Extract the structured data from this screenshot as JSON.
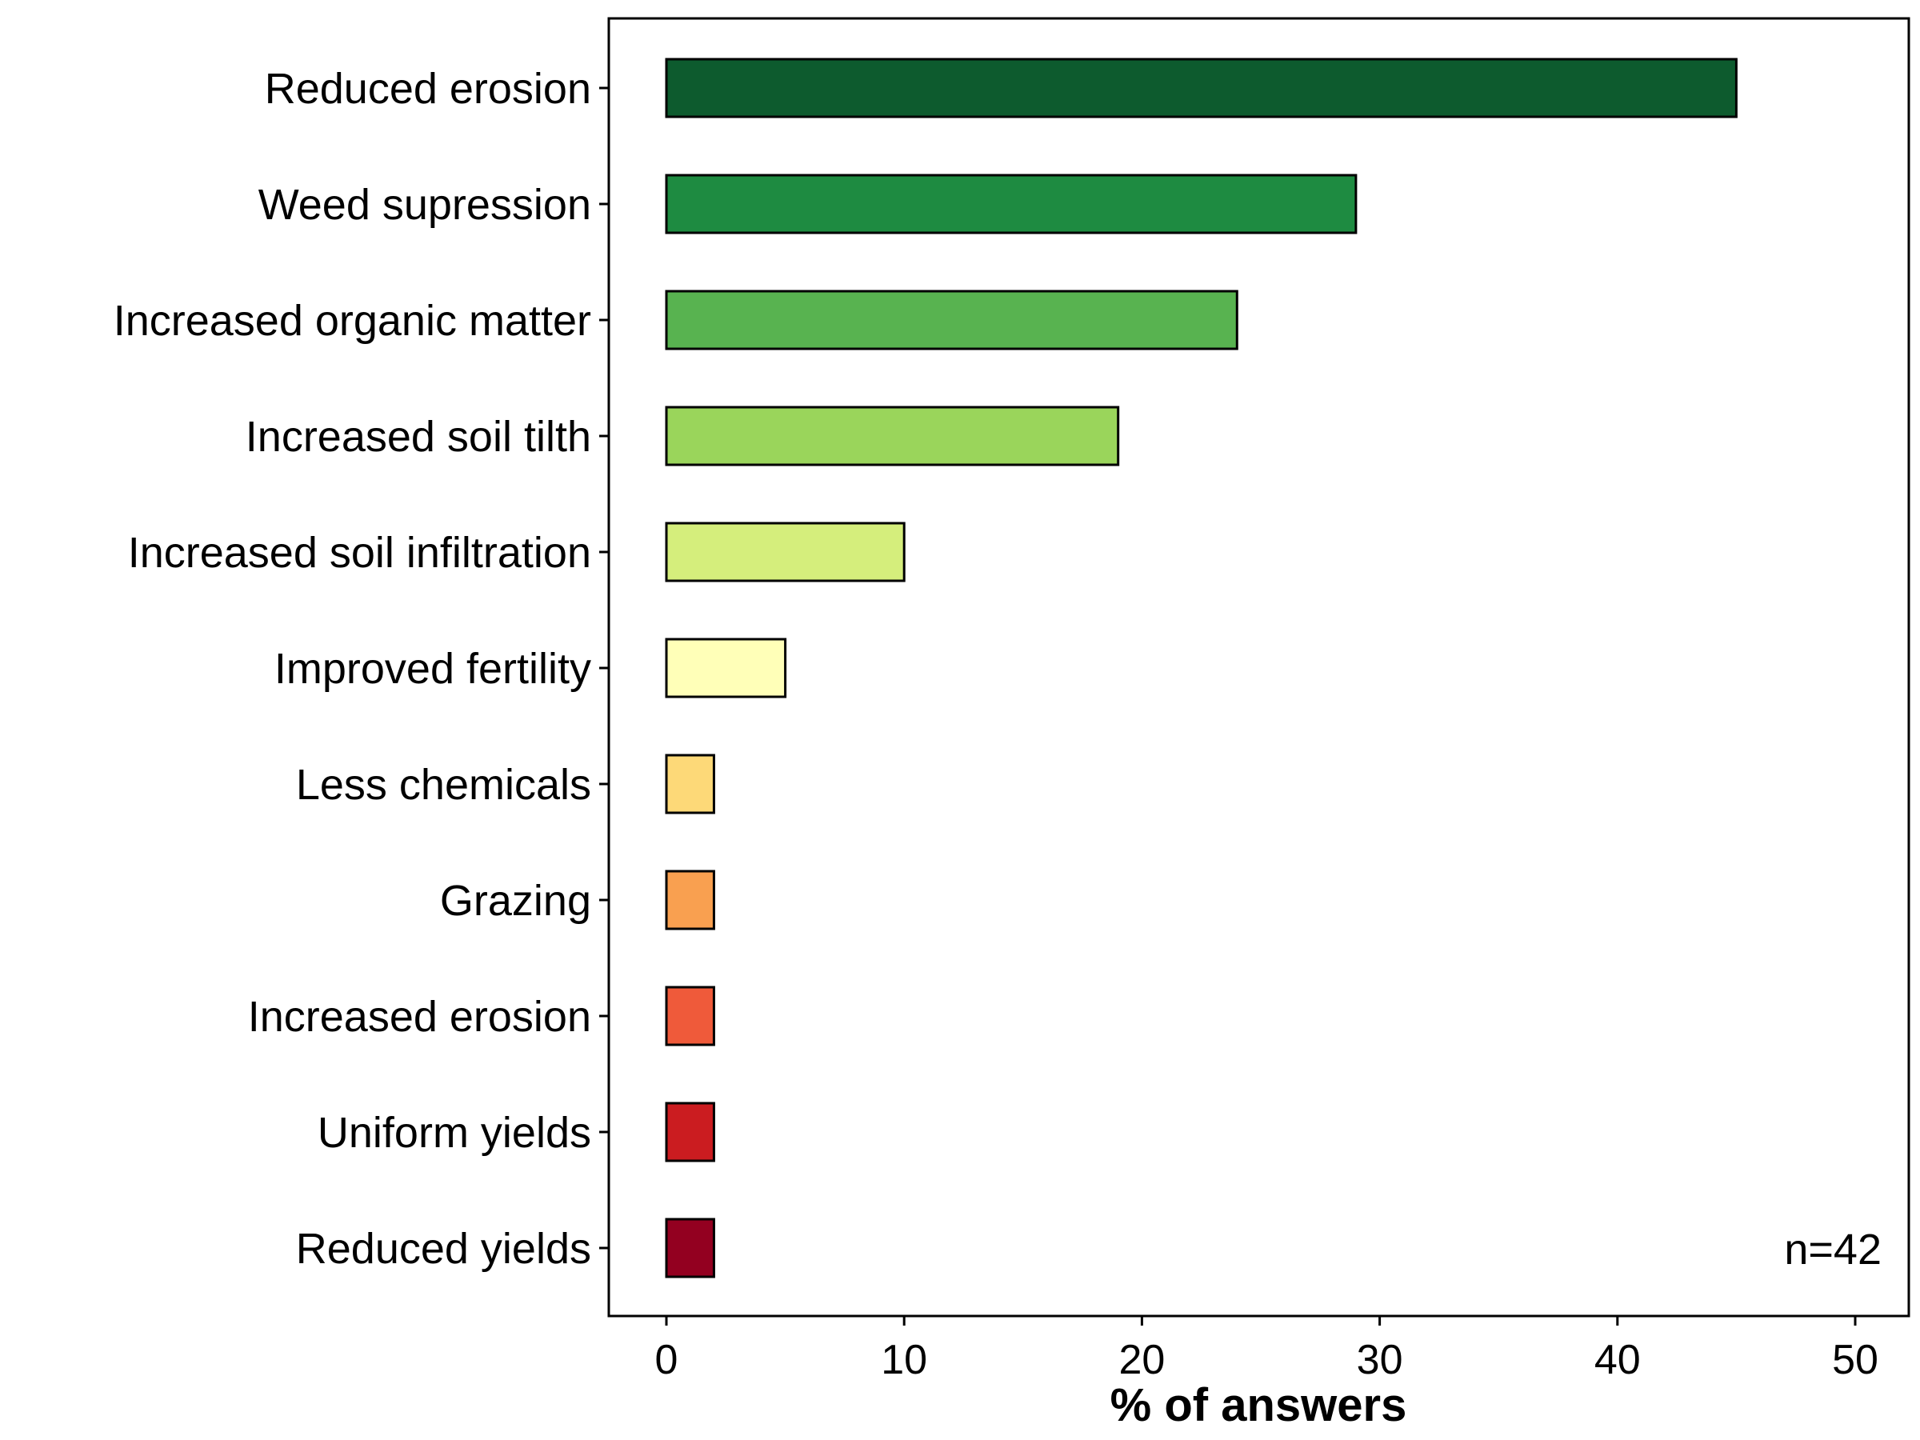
{
  "chart_data": {
    "type": "bar",
    "orientation": "horizontal",
    "categories": [
      "Reduced erosion",
      "Weed supression",
      "Increased organic matter",
      "Increased soil tilth",
      "Increased soil infiltration",
      "Improved fertility",
      "Less chemicals",
      "Grazing",
      "Increased erosion",
      "Uniform yields",
      "Reduced yields"
    ],
    "values": [
      45,
      29,
      24,
      19,
      10,
      5,
      2,
      2,
      2,
      2,
      2
    ],
    "colors": [
      "#0d5b2e",
      "#1e8b41",
      "#58b350",
      "#9ad55b",
      "#d5ee7c",
      "#ffffb8",
      "#fdd978",
      "#f9a050",
      "#ef5a3a",
      "#cb1c20",
      "#930020"
    ],
    "xlabel": "% of answers",
    "ylabel": "",
    "xlim": [
      0,
      50
    ],
    "xticks": [
      "0",
      "10",
      "20",
      "30",
      "40",
      "50"
    ],
    "annotation": "n=42",
    "grid": false
  }
}
